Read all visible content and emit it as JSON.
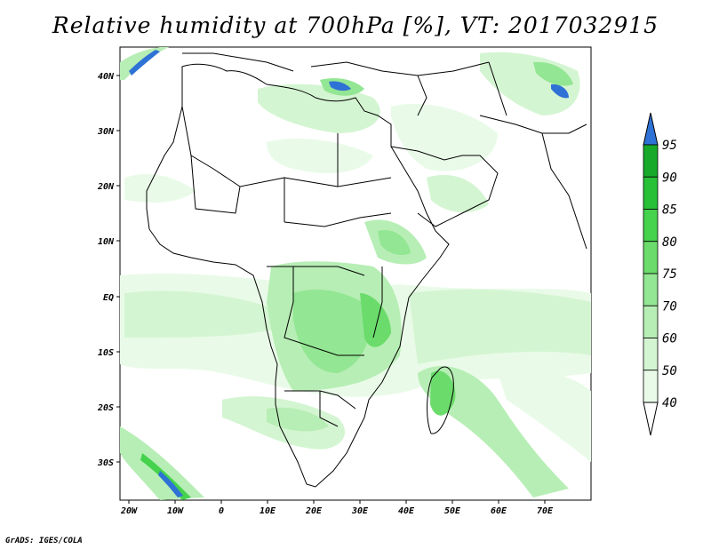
{
  "title": "Relative humidity at 700hPa [%], VT: 2017032915",
  "credit": "GrADS: IGES/COLA",
  "map": {
    "lon_range": [
      -22,
      80
    ],
    "lat_range": [
      -37,
      45
    ],
    "lon_ticks": [
      "20W",
      "10W",
      "0",
      "10E",
      "20E",
      "30E",
      "40E",
      "50E",
      "60E",
      "70E"
    ],
    "lat_ticks": [
      "40N",
      "30N",
      "20N",
      "10N",
      "EQ",
      "10S",
      "20S",
      "30S"
    ]
  },
  "colorbar": {
    "levels": [
      "95",
      "90",
      "85",
      "80",
      "75",
      "70",
      "60",
      "50",
      "40"
    ],
    "colors": [
      "#17a92a",
      "#27c037",
      "#45d24d",
      "#6bdc6b",
      "#93e693",
      "#b7eeb5",
      "#d4f5d2",
      "#e9fbe8"
    ],
    "over_color": "#2f72d6",
    "under_color": "#ffffff"
  }
}
